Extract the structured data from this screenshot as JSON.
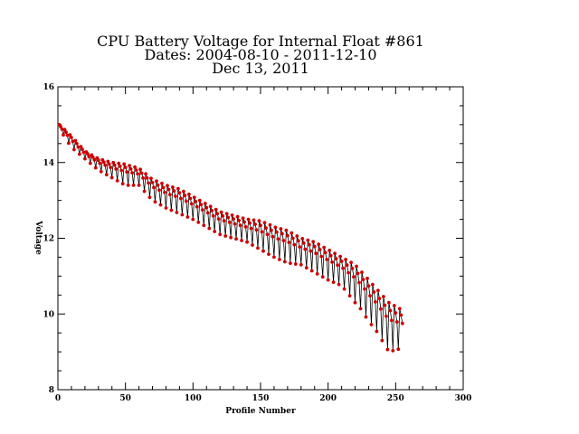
{
  "chart_data": {
    "type": "line",
    "title_lines": [
      "CPU Battery Voltage for Internal Float #861",
      "Dates:  2004-08-10 -  2011-12-10",
      "Dec 13, 2011"
    ],
    "xlabel": "Profile Number",
    "ylabel": "Voltage",
    "xlim": [
      0,
      300
    ],
    "ylim": [
      8,
      16
    ],
    "xticks": [
      0,
      50,
      100,
      150,
      200,
      250,
      300
    ],
    "yticks": [
      8,
      10,
      12,
      14,
      16
    ],
    "grid": false,
    "marker_color": "#cc0000",
    "line_color": "#000000",
    "trend": {
      "x": [
        1,
        10,
        20,
        30,
        40,
        50,
        60,
        70,
        80,
        90,
        100,
        110,
        120,
        130,
        140,
        150,
        160,
        170,
        180,
        190,
        200,
        210,
        220,
        225,
        230,
        235,
        240,
        245,
        250,
        255
      ],
      "high": [
        15.0,
        14.7,
        14.3,
        14.1,
        14.0,
        13.95,
        13.85,
        13.55,
        13.4,
        13.3,
        13.1,
        12.9,
        12.7,
        12.6,
        12.5,
        12.45,
        12.3,
        12.2,
        12.0,
        11.9,
        11.7,
        11.5,
        11.3,
        11.1,
        10.9,
        10.7,
        10.5,
        10.3,
        10.2,
        10.1
      ],
      "low": [
        14.9,
        14.4,
        14.1,
        13.8,
        13.6,
        13.4,
        13.4,
        13.0,
        12.8,
        12.65,
        12.5,
        12.3,
        12.1,
        12.0,
        11.9,
        11.7,
        11.5,
        11.35,
        11.3,
        11.1,
        10.9,
        10.75,
        10.3,
        10.1,
        9.8,
        9.6,
        9.3,
        9.0,
        9.05,
        9.1
      ]
    },
    "series": [
      {
        "x": [],
        "values": []
      }
    ]
  }
}
